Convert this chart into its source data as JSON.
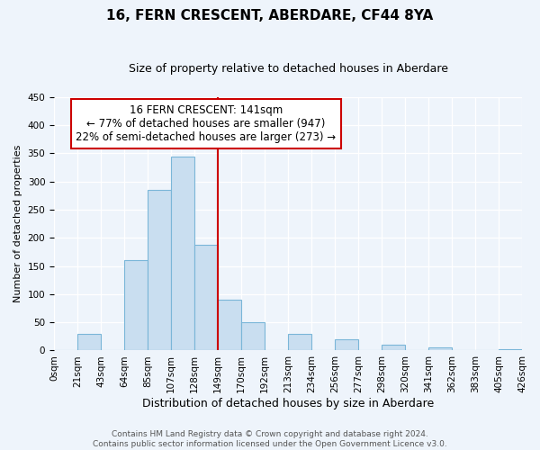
{
  "title": "16, FERN CRESCENT, ABERDARE, CF44 8YA",
  "subtitle": "Size of property relative to detached houses in Aberdare",
  "xlabel": "Distribution of detached houses by size in Aberdare",
  "ylabel": "Number of detached properties",
  "bin_labels": [
    "0sqm",
    "21sqm",
    "43sqm",
    "64sqm",
    "85sqm",
    "107sqm",
    "128sqm",
    "149sqm",
    "170sqm",
    "192sqm",
    "213sqm",
    "234sqm",
    "256sqm",
    "277sqm",
    "298sqm",
    "320sqm",
    "341sqm",
    "362sqm",
    "383sqm",
    "405sqm",
    "426sqm"
  ],
  "bar_heights": [
    0,
    30,
    0,
    160,
    285,
    345,
    187,
    90,
    50,
    0,
    30,
    0,
    20,
    0,
    10,
    0,
    5,
    0,
    0,
    3
  ],
  "bar_color": "#c9def0",
  "bar_edge_color": "#7ab6d8",
  "vline_x_index": 7,
  "vline_color": "#cc0000",
  "ylim": [
    0,
    450
  ],
  "yticks": [
    0,
    50,
    100,
    150,
    200,
    250,
    300,
    350,
    400,
    450
  ],
  "annotation_title": "16 FERN CRESCENT: 141sqm",
  "annotation_line1": "← 77% of detached houses are smaller (947)",
  "annotation_line2": "22% of semi-detached houses are larger (273) →",
  "annotation_box_color": "#ffffff",
  "annotation_box_edge": "#cc0000",
  "footer_line1": "Contains HM Land Registry data © Crown copyright and database right 2024.",
  "footer_line2": "Contains public sector information licensed under the Open Government Licence v3.0.",
  "background_color": "#eef4fb",
  "grid_color": "#ffffff",
  "title_fontsize": 11,
  "subtitle_fontsize": 9,
  "ylabel_fontsize": 8,
  "xlabel_fontsize": 9,
  "tick_fontsize": 7.5,
  "annotation_fontsize": 8.5,
  "footer_fontsize": 6.5
}
